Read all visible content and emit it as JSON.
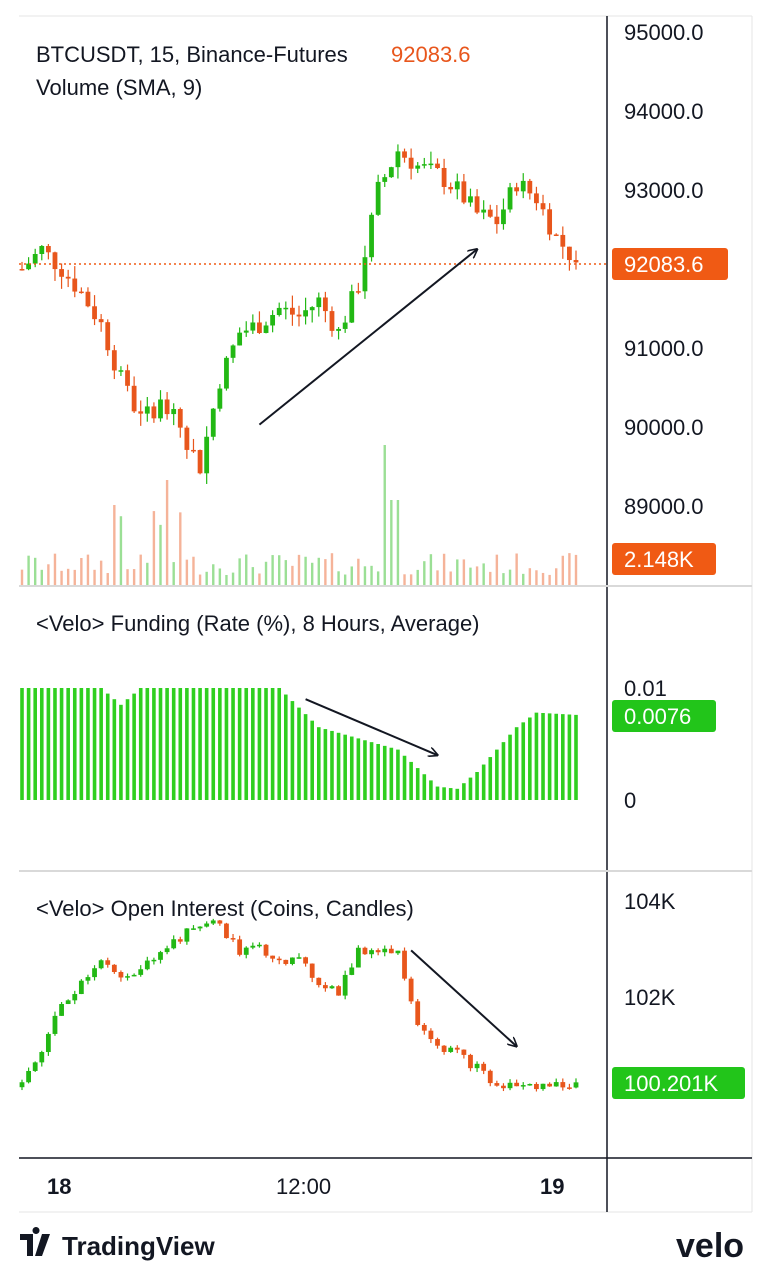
{
  "colors": {
    "up": "#22b814",
    "down": "#e8561c",
    "funding": "#2fcf1f",
    "price_tag": "#f05a14",
    "volume_tag": "#f05a14",
    "funding_tag": "#22c51a",
    "oi_tag": "#22c51a",
    "arrow": "#131722",
    "border": "#131722",
    "divider": "#d9d9d9"
  },
  "price_panel": {
    "symbol_label": "BTCUSDT, 15, Binance-Futures",
    "last_price": "92083.6",
    "volume_label": "Volume (SMA, 9)",
    "price_tag": "92083.6",
    "volume_tag": "2.148K",
    "ticks": [
      "95000.0",
      "94000.0",
      "93000.0",
      "91000.0",
      "90000.0",
      "89000.0"
    ]
  },
  "funding_panel": {
    "title": "<Velo> Funding (Rate (%), 8 Hours, Average)",
    "ticks": [
      "0.01",
      "0"
    ],
    "tag": "0.0076"
  },
  "oi_panel": {
    "title": "<Velo> Open Interest (Coins, Candles)",
    "ticks": [
      "104K",
      "102K"
    ],
    "tag": "100.201K"
  },
  "time_axis": {
    "labels": [
      "18",
      "12:00",
      "19"
    ]
  },
  "footer": {
    "left_brand": "TradingView",
    "right_brand": "velo"
  },
  "chart_data": [
    {
      "type": "candlestick",
      "title": "BTCUSDT, 15, Binance-Futures",
      "interval": "15",
      "last": 92083.6,
      "ylim": [
        88700,
        95100
      ],
      "price_path": [
        [
          0,
          92000
        ],
        [
          3,
          92250
        ],
        [
          6,
          92000
        ],
        [
          9,
          91700
        ],
        [
          12,
          91300
        ],
        [
          15,
          90600
        ],
        [
          18,
          90100
        ],
        [
          21,
          90300
        ],
        [
          24,
          90000
        ],
        [
          27,
          89500
        ],
        [
          30,
          90600
        ],
        [
          33,
          91200
        ],
        [
          36,
          91300
        ],
        [
          39,
          91500
        ],
        [
          42,
          91400
        ],
        [
          45,
          91600
        ],
        [
          48,
          91200
        ],
        [
          51,
          91800
        ],
        [
          54,
          93000
        ],
        [
          57,
          93500
        ],
        [
          60,
          93300
        ],
        [
          63,
          93200
        ],
        [
          66,
          93000
        ],
        [
          69,
          92700
        ],
        [
          72,
          92600
        ],
        [
          75,
          93100
        ],
        [
          78,
          92900
        ],
        [
          81,
          92400
        ],
        [
          84,
          92100
        ]
      ],
      "volume_tag": "2.148K",
      "arrow": {
        "from": [
          36,
          90030
        ],
        "to": [
          69,
          92250
        ]
      }
    },
    {
      "type": "bar",
      "title": "<Velo> Funding (Rate (%), 8 Hours, Average)",
      "ylim": [
        0,
        0.0128
      ],
      "profile": [
        [
          0,
          0.01
        ],
        [
          12,
          0.01
        ],
        [
          15,
          0.0085
        ],
        [
          18,
          0.01
        ],
        [
          39,
          0.01
        ],
        [
          45,
          0.0065
        ],
        [
          51,
          0.0055
        ],
        [
          57,
          0.0045
        ],
        [
          63,
          0.0012
        ],
        [
          66,
          0.001
        ],
        [
          69,
          0.0025
        ],
        [
          75,
          0.0065
        ],
        [
          78,
          0.0078
        ],
        [
          84,
          0.0076
        ]
      ],
      "last": 0.0076,
      "arrow": {
        "from": [
          43,
          0.009
        ],
        "to": [
          63,
          0.004
        ]
      }
    },
    {
      "type": "candlestick",
      "title": "<Velo> Open Interest (Coins, Candles)",
      "ylim": [
        99300,
        104900
      ],
      "oi_path": [
        [
          0,
          100100
        ],
        [
          3,
          100900
        ],
        [
          6,
          101800
        ],
        [
          9,
          102300
        ],
        [
          12,
          102800
        ],
        [
          15,
          102300
        ],
        [
          18,
          102500
        ],
        [
          21,
          103000
        ],
        [
          24,
          103200
        ],
        [
          27,
          103500
        ],
        [
          30,
          103500
        ],
        [
          33,
          102900
        ],
        [
          36,
          103000
        ],
        [
          39,
          102800
        ],
        [
          42,
          102700
        ],
        [
          45,
          102300
        ],
        [
          48,
          102100
        ],
        [
          51,
          102900
        ],
        [
          54,
          103000
        ],
        [
          57,
          102900
        ],
        [
          60,
          101500
        ],
        [
          63,
          101000
        ],
        [
          66,
          100800
        ],
        [
          69,
          100500
        ],
        [
          72,
          100100
        ],
        [
          75,
          100150
        ],
        [
          78,
          100100
        ],
        [
          81,
          100150
        ],
        [
          84,
          100201
        ]
      ],
      "last": 100201,
      "arrow": {
        "from": [
          59,
          102950
        ],
        "to": [
          75,
          100950
        ]
      }
    }
  ]
}
